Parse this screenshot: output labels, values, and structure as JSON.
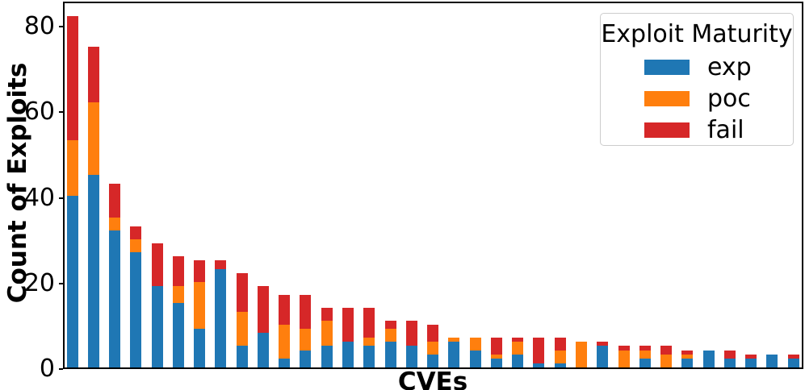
{
  "chart_data": {
    "type": "bar",
    "stacked": true,
    "title": "",
    "xlabel": "CVEs",
    "ylabel": "Count of Exploits",
    "yticks": [
      0,
      20,
      40,
      60,
      80
    ],
    "ylim": [
      0,
      85.6
    ],
    "grid": false,
    "x_tick_labels_visible": false,
    "n_bars": 35,
    "legend": {
      "title": "Exploit Maturity",
      "position": "upper right",
      "entries": [
        {
          "label": "exp",
          "color": "#1f77b4"
        },
        {
          "label": "poc",
          "color": "#ff7f0e"
        },
        {
          "label": "fail",
          "color": "#d62728"
        }
      ]
    },
    "series": [
      {
        "name": "exp",
        "color": "#1f77b4",
        "values": [
          40,
          45,
          32,
          27,
          19,
          15,
          9,
          23,
          5,
          8,
          2,
          4,
          5,
          6,
          5,
          6,
          5,
          3,
          6,
          4,
          2,
          3,
          1,
          1,
          0,
          5,
          0,
          2,
          0,
          2,
          4,
          2,
          2,
          3,
          2
        ]
      },
      {
        "name": "poc",
        "color": "#ff7f0e",
        "values": [
          13,
          17,
          3,
          3,
          0,
          4,
          11,
          0,
          8,
          0,
          8,
          5,
          6,
          0,
          2,
          3,
          0,
          3,
          1,
          3,
          1,
          3,
          0,
          3,
          6,
          0,
          4,
          2,
          3,
          1,
          0,
          0,
          0,
          0,
          0
        ]
      },
      {
        "name": "fail",
        "color": "#d62728",
        "values": [
          29,
          13,
          8,
          3,
          10,
          7,
          5,
          2,
          9,
          11,
          7,
          8,
          3,
          8,
          7,
          2,
          6,
          4,
          0,
          0,
          4,
          1,
          6,
          3,
          0,
          1,
          1,
          1,
          2,
          1,
          0,
          2,
          1,
          0,
          1
        ]
      }
    ],
    "totals": [
      82,
      75,
      43,
      33,
      29,
      26,
      25,
      25,
      22,
      19,
      17,
      17,
      14,
      14,
      14,
      11,
      11,
      10,
      7,
      7,
      7,
      7,
      7,
      7,
      6,
      6,
      5,
      5,
      5,
      4,
      4,
      4,
      3,
      3,
      3
    ]
  }
}
